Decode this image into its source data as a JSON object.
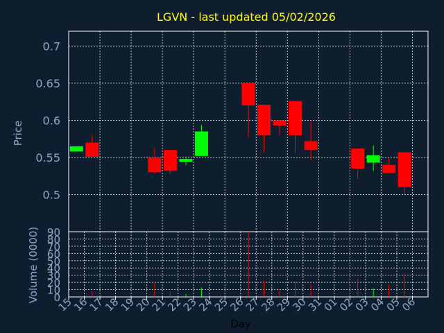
{
  "chart_data": {
    "type": "candlestick",
    "title": "LGVN - last updated 05/02/2026",
    "xlabel": "Day",
    "price_panel": {
      "ylabel": "Price",
      "ylim": [
        0.45,
        0.72
      ],
      "yticks": [
        0.5,
        0.55,
        0.6,
        0.65,
        0.7
      ],
      "ytick_labels": [
        "0.5",
        "0.55",
        "0.6",
        "0.65",
        "0.7"
      ],
      "grid": true
    },
    "volume_panel": {
      "ylabel": "Volume (0000)",
      "ylim": [
        0,
        90
      ],
      "yticks": [
        0,
        10,
        20,
        30,
        40,
        50,
        60,
        70,
        80,
        90
      ],
      "ytick_labels": [
        "0",
        "10",
        "20",
        "30",
        "40",
        "50",
        "60",
        "70",
        "80",
        "90"
      ],
      "grid": true
    },
    "x_tick_labels": [
      "15",
      "16",
      "17",
      "18",
      "19",
      "20",
      "21",
      "22",
      "23",
      "24",
      "25",
      "26",
      "27",
      "28",
      "29",
      "30",
      "31",
      "01",
      "02",
      "03",
      "04",
      "05",
      "06"
    ],
    "colors": {
      "up": "#00ff00",
      "down": "#ff0000",
      "title": "#ffff00",
      "axis_text": "#8fa8c8",
      "background": "#0f1e2e",
      "grid": "#ffffff"
    },
    "candles": [
      {
        "day": "15",
        "open": 0.558,
        "close": 0.565,
        "high": 0.565,
        "low": 0.558,
        "volume": 0
      },
      {
        "day": "16",
        "open": 0.57,
        "close": 0.551,
        "high": 0.58,
        "low": 0.551,
        "volume": 8
      },
      {
        "day": "20",
        "open": 0.55,
        "close": 0.53,
        "high": 0.563,
        "low": 0.528,
        "volume": 20
      },
      {
        "day": "21",
        "open": 0.56,
        "close": 0.532,
        "high": 0.56,
        "low": 0.528,
        "volume": 7
      },
      {
        "day": "22",
        "open": 0.544,
        "close": 0.548,
        "high": 0.551,
        "low": 0.54,
        "volume": 4
      },
      {
        "day": "23",
        "open": 0.552,
        "close": 0.585,
        "high": 0.594,
        "low": 0.552,
        "volume": 13
      },
      {
        "day": "26",
        "open": 0.65,
        "close": 0.62,
        "high": 0.65,
        "low": 0.577,
        "volume": 90
      },
      {
        "day": "27",
        "open": 0.621,
        "close": 0.58,
        "high": 0.621,
        "low": 0.557,
        "volume": 22
      },
      {
        "day": "28",
        "open": 0.6,
        "close": 0.593,
        "high": 0.6,
        "low": 0.58,
        "volume": 11
      },
      {
        "day": "29",
        "open": 0.626,
        "close": 0.58,
        "high": 0.626,
        "low": 0.557,
        "volume": 21
      },
      {
        "day": "30",
        "open": 0.572,
        "close": 0.56,
        "high": 0.6,
        "low": 0.546,
        "volume": 17
      },
      {
        "day": "02",
        "open": 0.562,
        "close": 0.535,
        "high": 0.562,
        "low": 0.521,
        "volume": 25
      },
      {
        "day": "03",
        "open": 0.543,
        "close": 0.553,
        "high": 0.566,
        "low": 0.532,
        "volume": 12
      },
      {
        "day": "04",
        "open": 0.54,
        "close": 0.529,
        "high": 0.549,
        "low": 0.529,
        "volume": 17
      },
      {
        "day": "05",
        "open": 0.557,
        "close": 0.51,
        "high": 0.557,
        "low": 0.501,
        "volume": 32
      }
    ]
  }
}
